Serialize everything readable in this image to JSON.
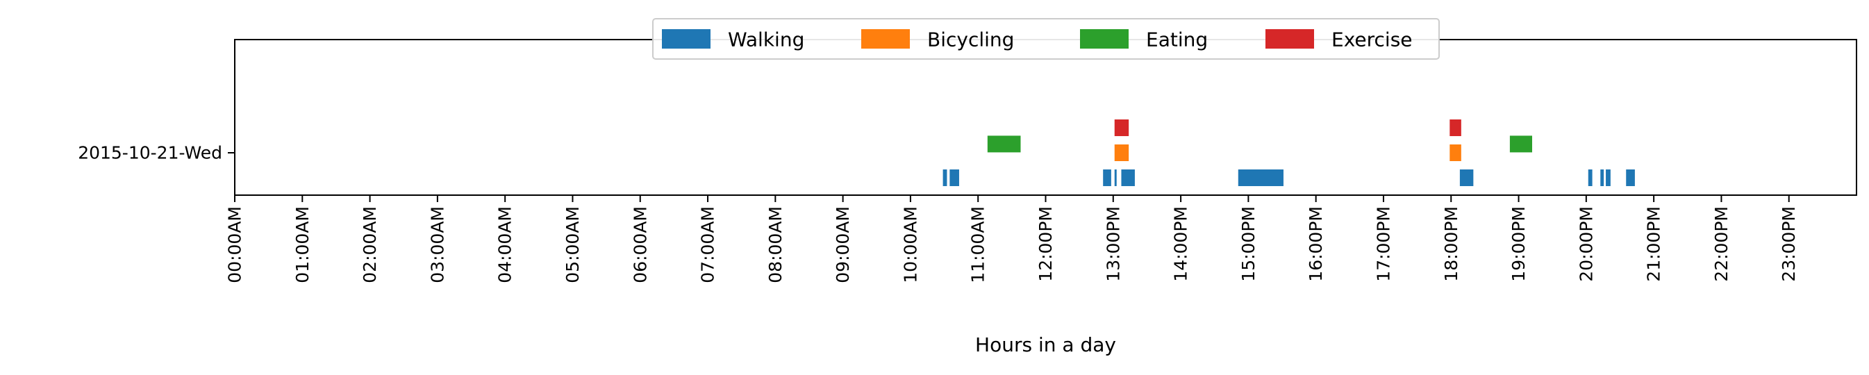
{
  "chart_data": {
    "type": "bar",
    "orientation": "horizontal-timeline",
    "title": "",
    "xlabel": "Hours in a day",
    "ylabel": "",
    "xlim": [
      0,
      24
    ],
    "category": "2015-10-21-Wed",
    "x_tick_values": [
      0,
      1,
      2,
      3,
      4,
      5,
      6,
      7,
      8,
      9,
      10,
      11,
      12,
      13,
      14,
      15,
      16,
      17,
      18,
      19,
      20,
      21,
      22,
      23
    ],
    "x_tick_labels": [
      "00:00AM",
      "01:00AM",
      "02:00AM",
      "03:00AM",
      "04:00AM",
      "05:00AM",
      "06:00AM",
      "07:00AM",
      "08:00AM",
      "09:00AM",
      "10:00AM",
      "11:00AM",
      "12:00PM",
      "13:00PM",
      "14:00PM",
      "15:00PM",
      "16:00PM",
      "17:00PM",
      "18:00PM",
      "19:00PM",
      "20:00PM",
      "21:00PM",
      "22:00PM",
      "23:00PM"
    ],
    "grid": false,
    "legend_position": "top-center",
    "series": [
      {
        "name": "Walking",
        "color": "#1f77b4",
        "lane": -1,
        "intervals": [
          [
            10.48,
            10.54
          ],
          [
            10.58,
            10.72
          ],
          [
            12.85,
            12.97
          ],
          [
            13.02,
            13.05
          ],
          [
            13.12,
            13.32
          ],
          [
            14.85,
            15.52
          ],
          [
            18.13,
            18.33
          ],
          [
            20.03,
            20.09
          ],
          [
            20.21,
            20.26
          ],
          [
            20.29,
            20.36
          ],
          [
            20.59,
            20.72
          ]
        ]
      },
      {
        "name": "Bicycling",
        "color": "#ff7f0e",
        "lane": 0,
        "intervals": [
          [
            13.02,
            13.23
          ],
          [
            17.98,
            18.15
          ]
        ]
      },
      {
        "name": "Eating",
        "color": "#2ca02c",
        "lane": 0.35,
        "intervals": [
          [
            11.14,
            11.63
          ],
          [
            18.87,
            19.2
          ]
        ]
      },
      {
        "name": "Exercise",
        "color": "#d62728",
        "lane": 1,
        "intervals": [
          [
            13.02,
            13.23
          ],
          [
            17.98,
            18.15
          ]
        ]
      }
    ]
  }
}
